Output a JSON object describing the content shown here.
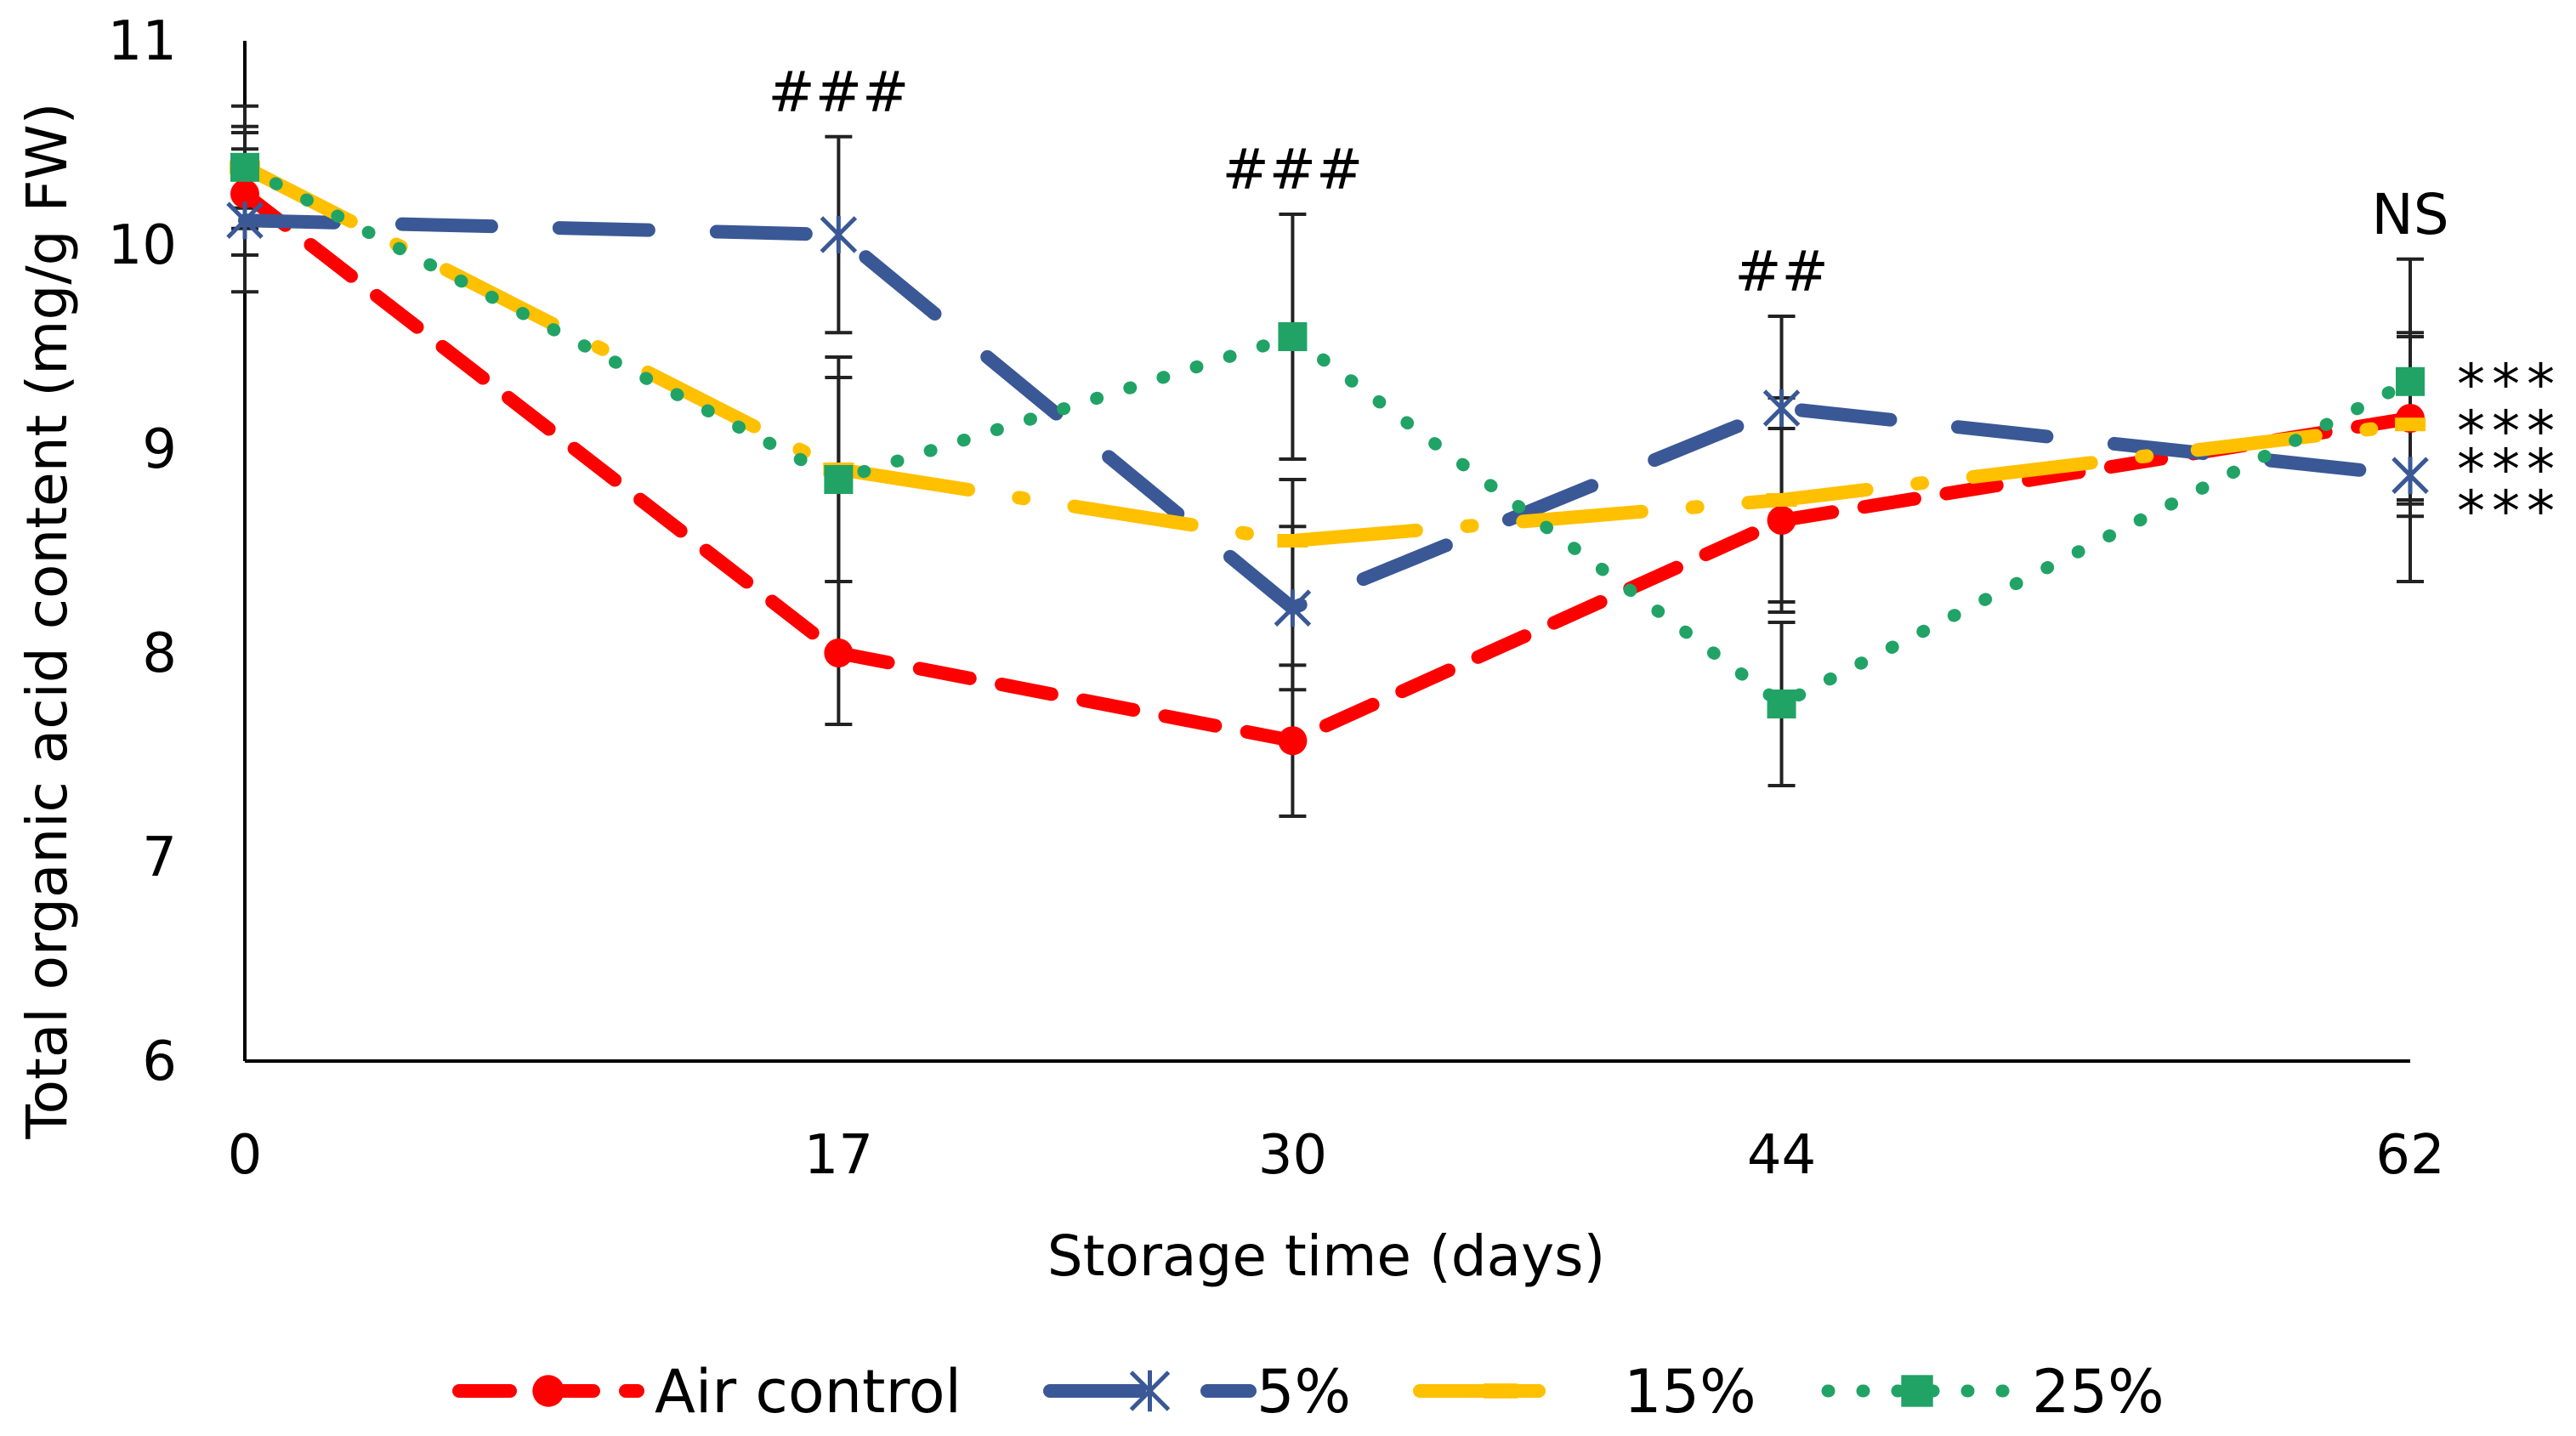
{
  "chart_data": {
    "type": "line",
    "title": "",
    "xlabel": "Storage time (days)",
    "ylabel": "Total organic acid content (mg/g FW)",
    "categories": [
      "0",
      "17",
      "30",
      "44",
      "62"
    ],
    "ylim": [
      6,
      11
    ],
    "yticks": [
      "6",
      "7",
      "8",
      "9",
      "10",
      "11"
    ],
    "grid": false,
    "legend_position": "bottom",
    "series": [
      {
        "name": "Air control",
        "color": "#FF0000",
        "dash": "dashed",
        "marker": "circle",
        "values": [
          10.25,
          8.0,
          7.57,
          8.65,
          9.15
        ],
        "errors": [
          0.3,
          0.35,
          0.37,
          0.45,
          0.4
        ]
      },
      {
        "name": "5%",
        "color": "#3A5895",
        "dash": "long-dash",
        "marker": "asterisk",
        "values": [
          10.12,
          10.05,
          8.22,
          9.2,
          8.87
        ],
        "errors": [
          0.35,
          0.48,
          0.4,
          0.45,
          0.52
        ]
      },
      {
        "name": "15%",
        "color": "#FFC000",
        "dash": "long-dash-dot",
        "marker": "dash",
        "values": [
          10.38,
          8.9,
          8.55,
          8.75,
          9.12
        ],
        "errors": [
          0.3,
          0.55,
          0.3,
          0.5,
          0.45
        ]
      },
      {
        "name": "25%",
        "color": "#21A366",
        "dash": "dotted",
        "marker": "square",
        "values": [
          10.38,
          8.85,
          9.55,
          7.75,
          9.33
        ],
        "errors": [
          0.2,
          0.5,
          0.6,
          0.4,
          0.6
        ]
      }
    ],
    "significance_top": [
      "",
      "###",
      "###",
      "##",
      "NS"
    ],
    "significance_right": [
      "***",
      "***",
      "***",
      "***"
    ]
  }
}
